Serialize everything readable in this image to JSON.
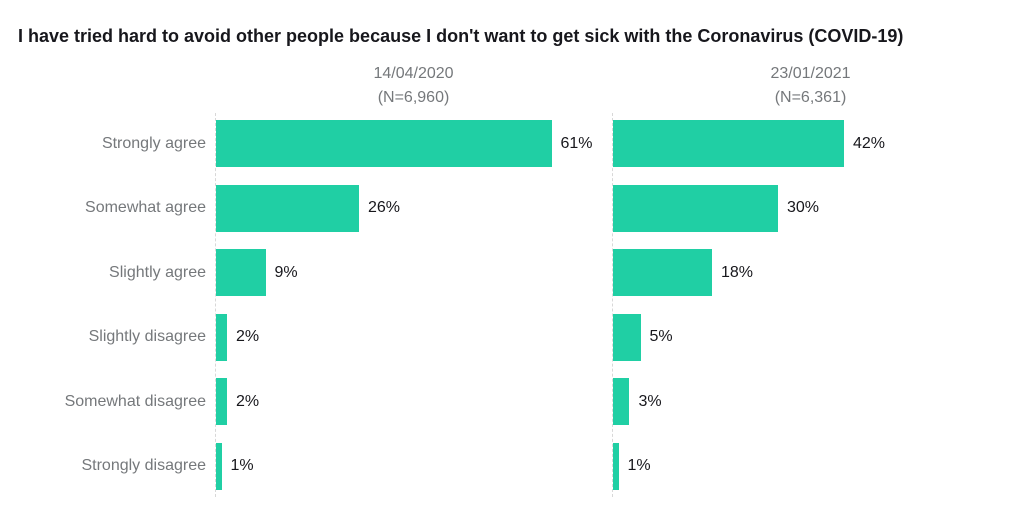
{
  "title": "I have tried hard to avoid other people because I don't want to get sick with the Coronavirus (COVID-19)",
  "colors": {
    "bar": "#20cfa4",
    "title_text": "#17171c",
    "muted_text": "#75787b",
    "axis_line": "#d8d8d8"
  },
  "chart_data": {
    "type": "bar",
    "orientation": "horizontal",
    "title": "I have tried hard to avoid other people because I don't want to get sick with the Coronavirus (COVID-19)",
    "categories": [
      "Strongly agree",
      "Somewhat agree",
      "Slightly agree",
      "Slightly disagree",
      "Somewhat disagree",
      "Strongly disagree"
    ],
    "series": [
      {
        "name": "14/04/2020",
        "n_label": "(N=6,960)",
        "values": [
          61,
          26,
          9,
          2,
          2,
          1
        ]
      },
      {
        "name": "23/01/2021",
        "n_label": "(N=6,361)",
        "values": [
          42,
          30,
          18,
          5,
          3,
          1
        ]
      }
    ],
    "value_suffix": "%",
    "xlim": [
      0,
      72
    ],
    "grid": "off",
    "legend_position": "column-headers",
    "value_labels": "outside-end",
    "bar_color": "#20cfa4"
  }
}
